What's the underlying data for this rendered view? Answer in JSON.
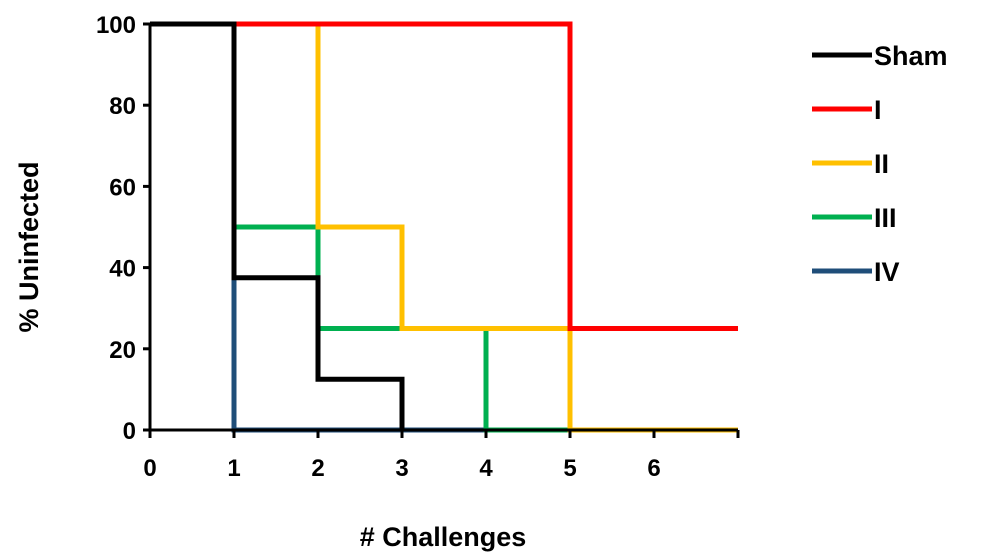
{
  "chart_data": {
    "type": "line",
    "step": true,
    "title": "",
    "xlabel": "# Challenges",
    "ylabel": "% Uninfected",
    "xlim": [
      0,
      7
    ],
    "ylim": [
      0,
      100
    ],
    "x_ticks": [
      0,
      1,
      2,
      3,
      4,
      5,
      6
    ],
    "y_ticks": [
      0,
      20,
      40,
      60,
      80,
      100
    ],
    "grid": false,
    "legend_position": "top-right",
    "series": [
      {
        "name": "Sham",
        "color": "#000000",
        "x": [
          0,
          1,
          2,
          3
        ],
        "y": [
          100,
          37.5,
          12.5,
          0
        ],
        "end_x": 3
      },
      {
        "name": "I",
        "color": "#ff0000",
        "x": [
          0,
          5
        ],
        "y": [
          100,
          25
        ],
        "end_x": 7
      },
      {
        "name": "II",
        "color": "#ffc000",
        "x": [
          0,
          2,
          3,
          5
        ],
        "y": [
          100,
          50,
          25,
          0
        ],
        "end_x": 7
      },
      {
        "name": "III",
        "color": "#00b050",
        "x": [
          0,
          1,
          2,
          4
        ],
        "y": [
          100,
          50,
          25,
          0
        ],
        "end_x": 7
      },
      {
        "name": "IV",
        "color": "#1f4e79",
        "x": [
          0,
          1
        ],
        "y": [
          100,
          0
        ],
        "end_x": 7
      }
    ]
  }
}
